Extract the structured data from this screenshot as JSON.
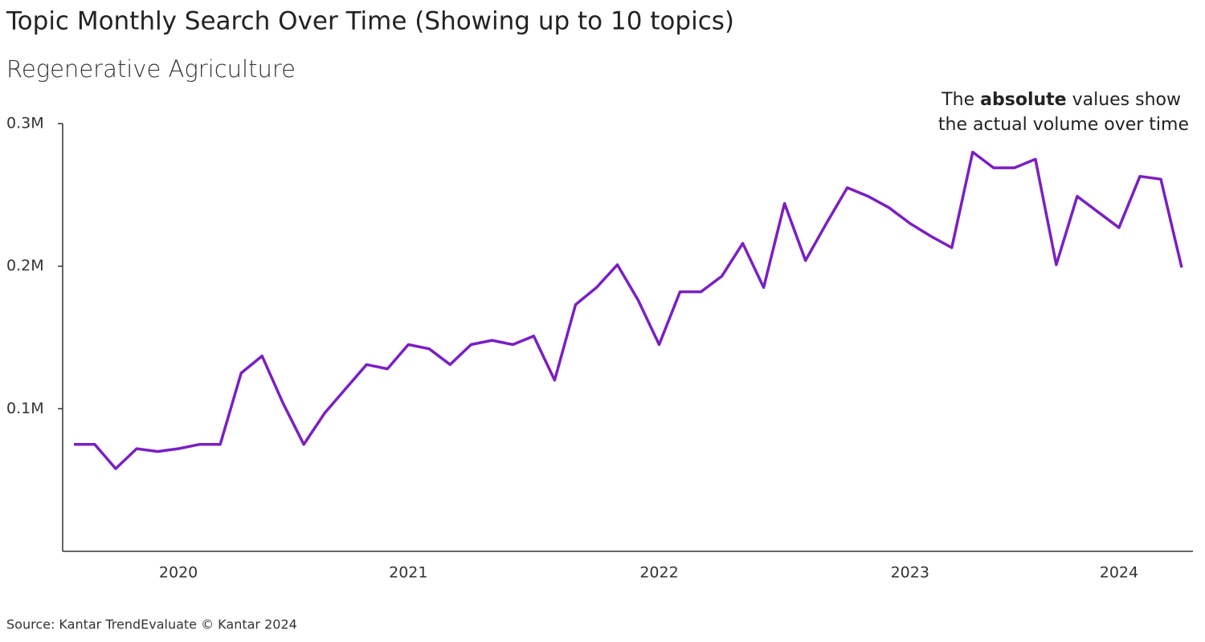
{
  "chart_data": {
    "type": "line",
    "title": "Topic Monthly Search Over Time (Showing up to 10 topics)",
    "subtitle": "Regenerative Agriculture",
    "annotation": {
      "line1": [
        "The",
        "absolute",
        "values show"
      ],
      "line2": "the actual volume over time"
    },
    "source": "Source: Kantar TrendEvaluate © Kantar 2024",
    "categories": [
      null,
      null,
      null,
      null,
      null,
      "2020",
      null,
      null,
      null,
      null,
      null,
      null,
      null,
      null,
      null,
      null,
      "2021",
      null,
      null,
      null,
      null,
      null,
      null,
      null,
      null,
      null,
      null,
      null,
      "2022",
      null,
      null,
      null,
      null,
      null,
      null,
      null,
      null,
      null,
      null,
      null,
      "2023",
      null,
      null,
      null,
      null,
      null,
      null,
      null,
      null,
      null,
      "2024",
      null,
      null,
      null
    ],
    "series": [
      {
        "color": "#7b1fc2",
        "values": [
          75000,
          75000,
          58000,
          72000,
          70000,
          72000,
          75000,
          75000,
          125000,
          137000,
          104000,
          75000,
          97000,
          114000,
          131000,
          128000,
          145000,
          142000,
          131000,
          145000,
          148000,
          145000,
          151000,
          120000,
          173000,
          185000,
          201000,
          176000,
          145000,
          182000,
          182000,
          193000,
          216000,
          185000,
          244000,
          204000,
          230000,
          255000,
          249000,
          241000,
          230000,
          221000,
          213000,
          280000,
          269000,
          269000,
          275000,
          201000,
          249000,
          238000,
          227000,
          263000,
          261000,
          199000
        ]
      }
    ],
    "ylim": [
      0,
      300000
    ],
    "yticks": [
      {
        "value": 100000,
        "label": "0.1M"
      },
      {
        "value": 200000,
        "label": "0.2M"
      },
      {
        "value": 300000,
        "label": "0.3M"
      }
    ]
  }
}
